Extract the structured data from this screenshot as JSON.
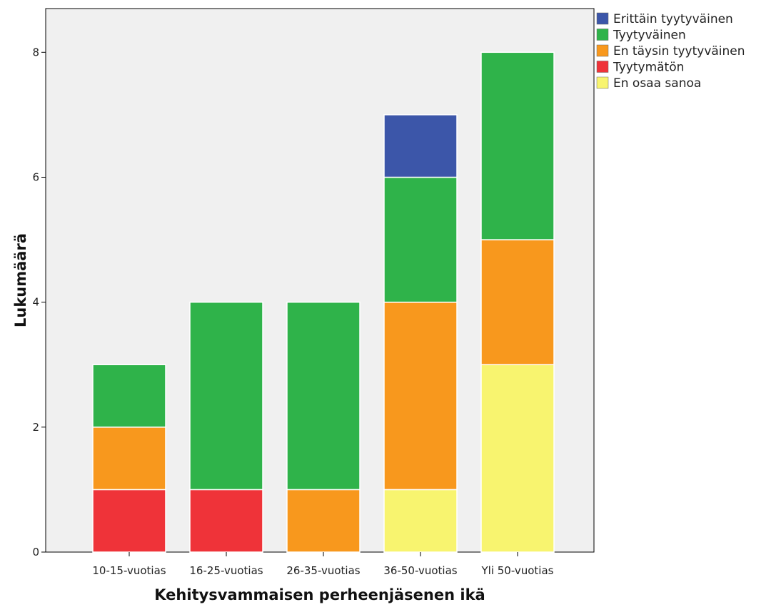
{
  "chart_data": {
    "type": "bar",
    "stacked": true,
    "categories": [
      "10-15-vuotias",
      "16-25-vuotias",
      "26-35-vuotias",
      "36-50-vuotias",
      "Yli 50-vuotias"
    ],
    "series": [
      {
        "name": "En osaa sanoa",
        "color": "#f8f46f",
        "values": [
          0,
          0,
          0,
          1,
          3
        ]
      },
      {
        "name": "Tyytymätön",
        "color": "#ef3339",
        "values": [
          1,
          1,
          0,
          0,
          0
        ]
      },
      {
        "name": "En täysin tyytyväinen",
        "color": "#f8981d",
        "values": [
          1,
          0,
          1,
          3,
          2
        ]
      },
      {
        "name": "Tyytyväinen",
        "color": "#2fb34a",
        "values": [
          1,
          3,
          3,
          2,
          3
        ]
      },
      {
        "name": "Erittäin tyytyväinen",
        "color": "#3c56a9",
        "values": [
          0,
          0,
          0,
          1,
          0
        ]
      }
    ],
    "legend_order": [
      "Erittäin tyytyväinen",
      "Tyytyväinen",
      "En täysin tyytyväinen",
      "Tyytymätön",
      "En osaa sanoa"
    ],
    "xlabel": "Kehitysvammaisen perheenjäsenen ikä",
    "ylabel": "Lukumäärä",
    "ylim": [
      0,
      8.7
    ],
    "yticks": [
      0,
      2,
      4,
      6,
      8
    ],
    "grid": false,
    "legend_position": "top-right",
    "plot_background": "#f0f0f0"
  }
}
